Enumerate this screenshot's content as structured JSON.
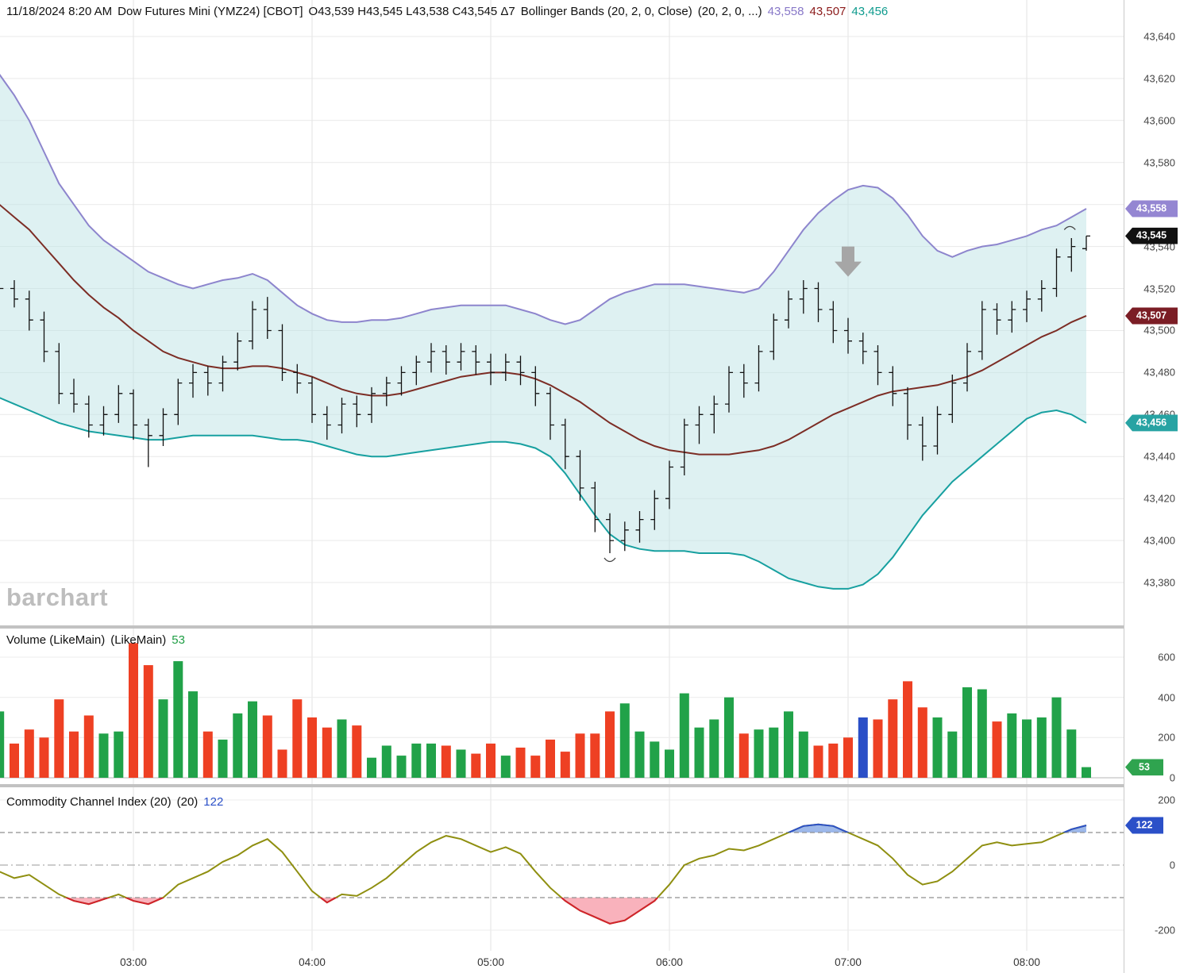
{
  "header": {
    "datetime": "11/18/2024 8:20 AM",
    "symbol_info": "Dow Futures Mini (YMZ24) [CBOT]",
    "ohlc": "O43,539 H43,545 L43,538 C43,545 Δ7",
    "study": "Bollinger Bands (20, 2, 0, Close)",
    "study_params": "(20, 2, 0, ...)",
    "band_values": {
      "upper": "43,558",
      "middle": "43,507",
      "lower": "43,456"
    }
  },
  "watermark": "barchart",
  "volume_header": {
    "title": "Volume (LikeMain)",
    "params": "(LikeMain)",
    "value": "53"
  },
  "cci_header": {
    "title": "Commodity Channel Index (20)",
    "params": "(20)",
    "value": "122"
  },
  "axis": {
    "price_ticks": [
      "43,640",
      "43,620",
      "43,600",
      "43,580",
      "43,560",
      "43,540",
      "43,520",
      "43,500",
      "43,480",
      "43,460",
      "43,440",
      "43,420",
      "43,400",
      "43,380"
    ],
    "volume_ticks": [
      "600",
      "400",
      "200",
      "0"
    ],
    "cci_ticks": [
      "200",
      "0",
      "-200"
    ],
    "time_ticks": [
      "03:00",
      "04:00",
      "05:00",
      "06:00",
      "07:00",
      "08:00"
    ],
    "pills": {
      "upper": "43,558",
      "last": "43,545",
      "middle": "43,507",
      "lower": "43,456",
      "volume": "53",
      "cci": "122"
    }
  },
  "colors": {
    "upper_band": "#8d85cd",
    "middle_band": "#7c2d25",
    "lower_band": "#17a0a0",
    "band_fill": "rgba(190,228,229,0.5)",
    "bar": "#111111",
    "volume_up": "#21a249",
    "volume_down": "#ee4023",
    "volume_highlight": "#2a4fc7",
    "cci_line": "#8f8f10",
    "cci_above": "#2b50c8",
    "cci_above_fill": "#9db8ea",
    "cci_below": "#d2212d",
    "cci_below_fill": "#f9b2bc",
    "tag_upper": "#9486d2",
    "tag_last": "#111111",
    "tag_middle": "#7b1d25",
    "tag_lower": "#27a3a3",
    "tag_volume": "#2fa44f",
    "tag_cci": "#2b50c8",
    "header_upper": "#8878c8",
    "header_middle": "#8b1a1a",
    "header_lower": "#0f9b8e",
    "legend_value_green": "#1e9e44",
    "legend_value_blue": "#2b50c8",
    "arrow": "#a6a6a6"
  },
  "chart_data": {
    "type": "ohlc+volume+cci",
    "title": "Dow Futures Mini (YMZ24) [CBOT] with Bollinger Bands (20,2,0,Close), Volume, CCI(20)",
    "interval": "5min",
    "price_axis": {
      "min": 43360,
      "max": 43650,
      "grid_step": 20,
      "grid_min": 43380,
      "grid_max": 43640
    },
    "volume_axis": {
      "min": 0,
      "max": 775,
      "grid": [
        200,
        400,
        600
      ]
    },
    "cci_axis": {
      "min": -250,
      "max": 250,
      "levels": [
        100,
        0,
        -100
      ]
    },
    "times": [
      "02:15",
      "02:20",
      "02:25",
      "02:30",
      "02:35",
      "02:40",
      "02:45",
      "02:50",
      "02:55",
      "03:00",
      "03:05",
      "03:10",
      "03:15",
      "03:20",
      "03:25",
      "03:30",
      "03:35",
      "03:40",
      "03:45",
      "03:50",
      "03:55",
      "04:00",
      "04:05",
      "04:10",
      "04:15",
      "04:20",
      "04:25",
      "04:30",
      "04:35",
      "04:40",
      "04:45",
      "04:50",
      "04:55",
      "05:00",
      "05:05",
      "05:10",
      "05:15",
      "05:20",
      "05:25",
      "05:30",
      "05:35",
      "05:40",
      "05:45",
      "05:50",
      "05:55",
      "06:00",
      "06:05",
      "06:10",
      "06:15",
      "06:20",
      "06:25",
      "06:30",
      "06:35",
      "06:40",
      "06:45",
      "06:50",
      "06:55",
      "07:00",
      "07:05",
      "07:10",
      "07:15",
      "07:20",
      "07:25",
      "07:30",
      "07:35",
      "07:40",
      "07:45",
      "07:50",
      "07:55",
      "08:00",
      "08:05",
      "08:10",
      "08:15",
      "08:20"
    ],
    "ohlc": [
      [
        43515,
        43527,
        43512,
        43520
      ],
      [
        43520,
        43524,
        43511,
        43515
      ],
      [
        43515,
        43519,
        43500,
        43505
      ],
      [
        43505,
        43509,
        43485,
        43490
      ],
      [
        43490,
        43494,
        43465,
        43470
      ],
      [
        43470,
        43477,
        43461,
        43465
      ],
      [
        43465,
        43469,
        43449,
        43455
      ],
      [
        43455,
        43464,
        43450,
        43460
      ],
      [
        43460,
        43474,
        43456,
        43470
      ],
      [
        43470,
        43472,
        43448,
        43455
      ],
      [
        43455,
        43458,
        43435,
        43450
      ],
      [
        43450,
        43463,
        43445,
        43460
      ],
      [
        43460,
        43477,
        43455,
        43475
      ],
      [
        43475,
        43484,
        43468,
        43480
      ],
      [
        43480,
        43483,
        43469,
        43475
      ],
      [
        43475,
        43488,
        43471,
        43485
      ],
      [
        43485,
        43499,
        43481,
        43495
      ],
      [
        43495,
        43514,
        43491,
        43510
      ],
      [
        43510,
        43516,
        43496,
        43500
      ],
      [
        43500,
        43503,
        43476,
        43480
      ],
      [
        43480,
        43484,
        43470,
        43475
      ],
      [
        43475,
        43478,
        43456,
        43460
      ],
      [
        43460,
        43464,
        43448,
        43455
      ],
      [
        43455,
        43468,
        43451,
        43465
      ],
      [
        43465,
        43469,
        43454,
        43460
      ],
      [
        43460,
        43473,
        43456,
        43470
      ],
      [
        43470,
        43478,
        43464,
        43475
      ],
      [
        43475,
        43483,
        43469,
        43480
      ],
      [
        43480,
        43488,
        43474,
        43485
      ],
      [
        43485,
        43494,
        43480,
        43490
      ],
      [
        43490,
        43493,
        43479,
        43485
      ],
      [
        43485,
        43494,
        43481,
        43490
      ],
      [
        43490,
        43493,
        43479,
        43485
      ],
      [
        43485,
        43489,
        43474,
        43480
      ],
      [
        43480,
        43489,
        43476,
        43485
      ],
      [
        43485,
        43488,
        43474,
        43480
      ],
      [
        43480,
        43483,
        43464,
        43470
      ],
      [
        43470,
        43473,
        43448,
        43455
      ],
      [
        43455,
        43458,
        43434,
        43440
      ],
      [
        43440,
        43443,
        43419,
        43425
      ],
      [
        43425,
        43428,
        43404,
        43410
      ],
      [
        43410,
        43413,
        43394,
        43400
      ],
      [
        43400,
        43409,
        43395,
        43405
      ],
      [
        43405,
        43414,
        43399,
        43410
      ],
      [
        43410,
        43424,
        43405,
        43420
      ],
      [
        43420,
        43438,
        43415,
        43435
      ],
      [
        43435,
        43458,
        43431,
        43455
      ],
      [
        43455,
        43464,
        43446,
        43460
      ],
      [
        43460,
        43469,
        43451,
        43465
      ],
      [
        43465,
        43483,
        43461,
        43480
      ],
      [
        43480,
        43484,
        43468,
        43475
      ],
      [
        43475,
        43493,
        43471,
        43490
      ],
      [
        43490,
        43508,
        43486,
        43505
      ],
      [
        43505,
        43519,
        43501,
        43515
      ],
      [
        43515,
        43524,
        43508,
        43520
      ],
      [
        43520,
        43523,
        43504,
        43510
      ],
      [
        43510,
        43514,
        43494,
        43500
      ],
      [
        43500,
        43506,
        43489,
        43495
      ],
      [
        43495,
        43499,
        43484,
        43490
      ],
      [
        43490,
        43493,
        43474,
        43480
      ],
      [
        43480,
        43483,
        43464,
        43470
      ],
      [
        43470,
        43473,
        43448,
        43455
      ],
      [
        43455,
        43459,
        43438,
        43445
      ],
      [
        43445,
        43464,
        43441,
        43460
      ],
      [
        43460,
        43479,
        43456,
        43475
      ],
      [
        43475,
        43494,
        43471,
        43490
      ],
      [
        43490,
        43514,
        43486,
        43510
      ],
      [
        43510,
        43513,
        43498,
        43505
      ],
      [
        43505,
        43514,
        43499,
        43510
      ],
      [
        43510,
        43519,
        43504,
        43515
      ],
      [
        43515,
        43524,
        43509,
        43520
      ],
      [
        43520,
        43539,
        43516,
        43535
      ],
      [
        43535,
        43544,
        43528,
        43540
      ],
      [
        43539,
        43545,
        43538,
        43545
      ]
    ],
    "bollinger": {
      "upper": [
        43622,
        43612,
        43600,
        43585,
        43570,
        43560,
        43550,
        43543,
        43538,
        43533,
        43528,
        43525,
        43522,
        43520,
        43522,
        43524,
        43525,
        43527,
        43524,
        43518,
        43512,
        43508,
        43505,
        43504,
        43504,
        43505,
        43505,
        43506,
        43508,
        43510,
        43511,
        43512,
        43512,
        43512,
        43512,
        43510,
        43508,
        43505,
        43503,
        43505,
        43510,
        43515,
        43518,
        43520,
        43522,
        43522,
        43522,
        43521,
        43520,
        43519,
        43518,
        43520,
        43528,
        43538,
        43548,
        43556,
        43562,
        43567,
        43569,
        43568,
        43563,
        43555,
        43545,
        43538,
        43535,
        43538,
        43540,
        43541,
        43543,
        43545,
        43548,
        43550,
        43554,
        43558
      ],
      "middle": [
        43560,
        43554,
        43548,
        43540,
        43532,
        43524,
        43517,
        43511,
        43506,
        43500,
        43495,
        43490,
        43487,
        43485,
        43483,
        43482,
        43482,
        43483,
        43483,
        43482,
        43480,
        43478,
        43475,
        43472,
        43470,
        43469,
        43469,
        43470,
        43472,
        43474,
        43476,
        43478,
        43479,
        43480,
        43480,
        43479,
        43477,
        43474,
        43470,
        43466,
        43461,
        43456,
        43452,
        43448,
        43445,
        43443,
        43442,
        43441,
        43441,
        43441,
        43442,
        43443,
        43445,
        43448,
        43452,
        43456,
        43460,
        43463,
        43466,
        43469,
        43471,
        43472,
        43473,
        43474,
        43476,
        43478,
        43481,
        43485,
        43489,
        43493,
        43497,
        43500,
        43504,
        43507
      ],
      "lower": [
        43468,
        43465,
        43462,
        43459,
        43456,
        43454,
        43452,
        43451,
        43450,
        43449,
        43448,
        43448,
        43449,
        43450,
        43450,
        43450,
        43450,
        43450,
        43449,
        43448,
        43448,
        43447,
        43445,
        43443,
        43441,
        43440,
        43440,
        43441,
        43442,
        43443,
        43444,
        43445,
        43446,
        43447,
        43447,
        43446,
        43444,
        43440,
        43432,
        43422,
        43412,
        43403,
        43398,
        43396,
        43395,
        43395,
        43395,
        43394,
        43394,
        43394,
        43393,
        43390,
        43386,
        43382,
        43380,
        43378,
        43377,
        43377,
        43379,
        43384,
        43392,
        43402,
        43412,
        43420,
        43428,
        43434,
        43440,
        43446,
        43452,
        43458,
        43461,
        43462,
        43460,
        43456
      ]
    },
    "volume": {
      "values": [
        330,
        170,
        240,
        200,
        390,
        230,
        310,
        220,
        230,
        670,
        560,
        390,
        580,
        430,
        230,
        190,
        320,
        380,
        310,
        140,
        390,
        300,
        250,
        290,
        260,
        100,
        160,
        110,
        170,
        170,
        160,
        140,
        120,
        170,
        110,
        150,
        110,
        190,
        130,
        220,
        220,
        330,
        370,
        230,
        180,
        140,
        420,
        250,
        290,
        400,
        220,
        240,
        250,
        330,
        230,
        160,
        170,
        200,
        300,
        290,
        390,
        480,
        350,
        300,
        230,
        450,
        440,
        280,
        320,
        290,
        300,
        400,
        240,
        53
      ],
      "highlight_index": 58
    },
    "cci": [
      -20,
      -40,
      -30,
      -60,
      -90,
      -110,
      -120,
      -105,
      -90,
      -110,
      -120,
      -100,
      -60,
      -40,
      -20,
      10,
      30,
      60,
      80,
      40,
      -20,
      -80,
      -115,
      -90,
      -95,
      -70,
      -40,
      0,
      40,
      70,
      90,
      80,
      60,
      40,
      55,
      35,
      -20,
      -70,
      -110,
      -140,
      -160,
      -180,
      -170,
      -140,
      -110,
      -60,
      0,
      20,
      30,
      50,
      45,
      60,
      80,
      100,
      120,
      125,
      120,
      100,
      80,
      60,
      20,
      -30,
      -60,
      -50,
      -20,
      20,
      60,
      70,
      60,
      65,
      70,
      90,
      110,
      122
    ],
    "annotations": {
      "down_arrow_time_index": 57,
      "down_arrow_price": 43540
    }
  }
}
